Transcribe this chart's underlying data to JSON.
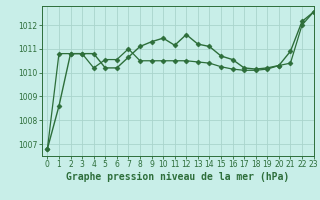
{
  "background_color": "#c8eee8",
  "grid_color": "#aad4cc",
  "line_color": "#2d6e3a",
  "title": "Graphe pression niveau de la mer (hPa)",
  "xlim": [
    -0.5,
    23
  ],
  "ylim": [
    1006.5,
    1012.8
  ],
  "yticks": [
    1007,
    1008,
    1009,
    1010,
    1011,
    1012
  ],
  "xticks": [
    0,
    1,
    2,
    3,
    4,
    5,
    6,
    7,
    8,
    9,
    10,
    11,
    12,
    13,
    14,
    15,
    16,
    17,
    18,
    19,
    20,
    21,
    22,
    23
  ],
  "series1_x": [
    0,
    1,
    2,
    3,
    4,
    5,
    6,
    7,
    8,
    9,
    10,
    11,
    12,
    13,
    14,
    15,
    16,
    17,
    18,
    19,
    20,
    21,
    22,
    23
  ],
  "series1_y": [
    1006.8,
    1008.6,
    1010.8,
    1010.8,
    1010.8,
    1010.2,
    1010.2,
    1010.65,
    1011.1,
    1011.3,
    1011.45,
    1011.15,
    1011.6,
    1011.2,
    1011.1,
    1010.7,
    1010.55,
    1010.2,
    1010.15,
    1010.2,
    1010.3,
    1010.9,
    1012.15,
    1012.55
  ],
  "series2_x": [
    0,
    1,
    2,
    3,
    4,
    5,
    6,
    7,
    8,
    9,
    10,
    11,
    12,
    13,
    14,
    15,
    16,
    17,
    18,
    19,
    20,
    21,
    22,
    23
  ],
  "series2_y": [
    1006.8,
    1010.8,
    1010.8,
    1010.8,
    1010.2,
    1010.55,
    1010.55,
    1011.0,
    1010.5,
    1010.5,
    1010.5,
    1010.5,
    1010.5,
    1010.45,
    1010.4,
    1010.25,
    1010.15,
    1010.1,
    1010.1,
    1010.15,
    1010.3,
    1010.4,
    1012.0,
    1012.55
  ],
  "title_fontsize": 7.0,
  "tick_fontsize": 5.5,
  "markersize": 2.5,
  "linewidth1": 1.0,
  "linewidth2": 0.9
}
